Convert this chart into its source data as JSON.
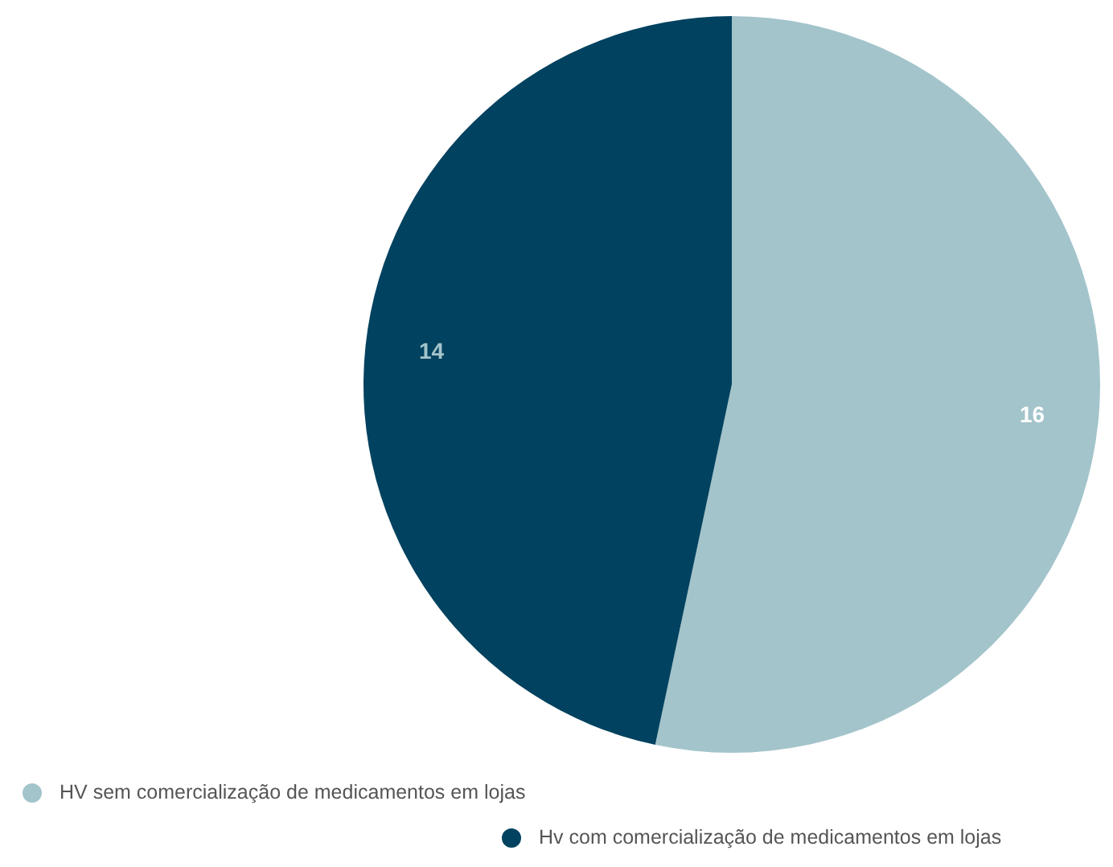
{
  "chart_data": {
    "type": "pie",
    "categories": [
      "HV sem comercialização de medicamentos em lojas",
      "Hv com comercialização de medicamentos em lojas"
    ],
    "values": [
      16,
      14
    ],
    "colors": [
      "#a3c4cb",
      "#00425f"
    ],
    "data_labels": true,
    "legend": "bottom"
  }
}
